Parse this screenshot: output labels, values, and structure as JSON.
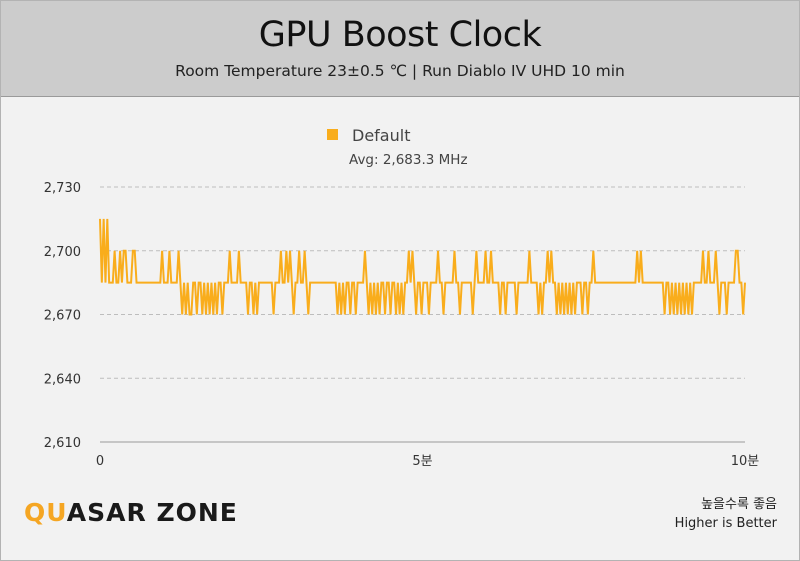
{
  "header": {
    "title": "GPU Boost Clock",
    "subtitle": "Room Temperature 23±0.5 ℃  |  Run Diablo IV UHD 10 min"
  },
  "brand": {
    "logo_text_a": "QU",
    "logo_text_b": "ASAR ZONE",
    "logo_accent": "#f5a623"
  },
  "footer": {
    "note_ko": "높을수록 좋음",
    "note_en": "Higher is Better"
  },
  "chart_data": {
    "type": "line",
    "legend": {
      "placement": "top-center"
    },
    "series": [
      {
        "name": "Default",
        "color": "#f9ad1c",
        "avg_label": "Avg: 2,683.3 MHz",
        "values": [
          2715,
          2685,
          2715,
          2685,
          2715,
          2685,
          2685,
          2685,
          2700,
          2685,
          2685,
          2700,
          2685,
          2700,
          2700,
          2685,
          2685,
          2685,
          2700,
          2700,
          2685,
          2685,
          2685,
          2685,
          2685,
          2685,
          2685,
          2685,
          2685,
          2685,
          2685,
          2685,
          2685,
          2685,
          2700,
          2685,
          2685,
          2685,
          2700,
          2685,
          2685,
          2685,
          2685,
          2700,
          2685,
          2670,
          2685,
          2670,
          2685,
          2670,
          2670,
          2685,
          2685,
          2670,
          2685,
          2685,
          2670,
          2685,
          2670,
          2685,
          2670,
          2685,
          2670,
          2685,
          2670,
          2685,
          2685,
          2670,
          2685,
          2685,
          2685,
          2700,
          2685,
          2685,
          2685,
          2685,
          2700,
          2685,
          2685,
          2685,
          2685,
          2670,
          2685,
          2685,
          2670,
          2685,
          2670,
          2685,
          2685,
          2685,
          2685,
          2685,
          2685,
          2685,
          2685,
          2670,
          2685,
          2685,
          2685,
          2700,
          2685,
          2685,
          2700,
          2685,
          2700,
          2685,
          2670,
          2685,
          2685,
          2700,
          2685,
          2685,
          2700,
          2685,
          2670,
          2685,
          2685,
          2685,
          2685,
          2685,
          2685,
          2685,
          2685,
          2685,
          2685,
          2685,
          2685,
          2685,
          2685,
          2685,
          2670,
          2685,
          2670,
          2685,
          2670,
          2685,
          2685,
          2670,
          2685,
          2685,
          2670,
          2685,
          2685,
          2685,
          2685,
          2700,
          2685,
          2670,
          2685,
          2670,
          2685,
          2670,
          2685,
          2670,
          2685,
          2685,
          2670,
          2685,
          2685,
          2670,
          2685,
          2685,
          2670,
          2685,
          2670,
          2685,
          2670,
          2685,
          2685,
          2700,
          2685,
          2700,
          2685,
          2670,
          2685,
          2685,
          2670,
          2685,
          2685,
          2685,
          2670,
          2685,
          2685,
          2685,
          2685,
          2700,
          2685,
          2685,
          2670,
          2685,
          2685,
          2685,
          2685,
          2685,
          2700,
          2685,
          2685,
          2670,
          2685,
          2685,
          2685,
          2685,
          2685,
          2685,
          2670,
          2685,
          2700,
          2685,
          2685,
          2685,
          2685,
          2700,
          2685,
          2685,
          2700,
          2685,
          2685,
          2685,
          2685,
          2670,
          2685,
          2685,
          2670,
          2685,
          2685,
          2685,
          2685,
          2685,
          2670,
          2685,
          2685,
          2685,
          2685,
          2685,
          2685,
          2700,
          2685,
          2685,
          2685,
          2685,
          2670,
          2685,
          2670,
          2685,
          2685,
          2700,
          2685,
          2700,
          2685,
          2685,
          2670,
          2685,
          2670,
          2685,
          2670,
          2685,
          2670,
          2685,
          2670,
          2685,
          2670,
          2685,
          2685,
          2685,
          2670,
          2685,
          2685,
          2670,
          2685,
          2685,
          2700,
          2685,
          2685,
          2685,
          2685,
          2685,
          2685,
          2685,
          2685,
          2685,
          2685,
          2685,
          2685,
          2685,
          2685,
          2685,
          2685,
          2685,
          2685,
          2685,
          2685,
          2685,
          2685,
          2685,
          2700,
          2685,
          2700,
          2685,
          2685,
          2685,
          2685,
          2685,
          2685,
          2685,
          2685,
          2685,
          2685,
          2685,
          2685,
          2670,
          2685,
          2685,
          2670,
          2685,
          2670,
          2685,
          2670,
          2685,
          2670,
          2685,
          2670,
          2685,
          2670,
          2685,
          2670,
          2685,
          2685,
          2685,
          2685,
          2685,
          2700,
          2685,
          2685,
          2700,
          2685,
          2685,
          2685,
          2700,
          2685,
          2670,
          2685,
          2685,
          2685,
          2670,
          2685,
          2685,
          2685,
          2685,
          2700,
          2700,
          2685,
          2685,
          2670,
          2685
        ],
        "x_start": 0,
        "x_end": 10
      }
    ],
    "x_ticks": [
      {
        "value": 0,
        "label": "0"
      },
      {
        "value": 5,
        "label": "5분"
      },
      {
        "value": 10,
        "label": "10분"
      }
    ],
    "y_ticks": [
      {
        "value": 2610,
        "label": "2,610"
      },
      {
        "value": 2640,
        "label": "2,640"
      },
      {
        "value": 2670,
        "label": "2,670"
      },
      {
        "value": 2700,
        "label": "2,700"
      },
      {
        "value": 2730,
        "label": "2,730"
      }
    ],
    "xlim": [
      0,
      10
    ],
    "ylim": [
      2610,
      2730
    ],
    "grid": true
  }
}
